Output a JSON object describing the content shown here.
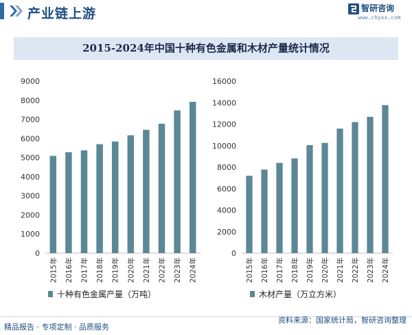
{
  "header": {
    "section_title": "产业链上游",
    "logo_name": "智研咨询",
    "logo_url": "www.chyxx.com"
  },
  "footer": {
    "left_text": "精品报告 · 专项定制 · 品质服务",
    "source_text": "资料来源：国家统计局，智研咨询整理"
  },
  "colors": {
    "bar": "#5b8797",
    "title_band": "#dde7f3",
    "accent": "#1f4e82"
  },
  "chart_data": [
    {
      "type": "bar",
      "title": "2015-2024年中国十种有色金属和木材产量统计情况",
      "categories": [
        "2015年",
        "2016年",
        "2017年",
        "2018年",
        "2019年",
        "2020年",
        "2021年",
        "2022年",
        "2023年",
        "2024年"
      ],
      "series": [
        {
          "name": "十种有色金属产量（万吨）",
          "values": [
            5090,
            5283,
            5378,
            5703,
            5842,
            6168,
            6454,
            6774,
            7470,
            7919
          ]
        }
      ],
      "ylim": [
        0,
        9000
      ],
      "yticks": [
        0,
        1000,
        2000,
        3000,
        4000,
        5000,
        6000,
        7000,
        8000,
        9000
      ],
      "legend": "bottom"
    },
    {
      "type": "bar",
      "title": "2015-2024年中国十种有色金属和木材产量统计情况",
      "categories": [
        "2015年",
        "2016年",
        "2017年",
        "2018年",
        "2019年",
        "2020年",
        "2021年",
        "2022年",
        "2023年",
        "2024年"
      ],
      "series": [
        {
          "name": "木材产量（万立方米）",
          "values": [
            7200,
            7776,
            8398,
            8811,
            10046,
            10257,
            11589,
            12193,
            12680,
            13773
          ]
        }
      ],
      "ylim": [
        0,
        16000
      ],
      "yticks": [
        0,
        2000,
        4000,
        6000,
        8000,
        10000,
        12000,
        14000,
        16000
      ],
      "legend": "bottom"
    }
  ]
}
